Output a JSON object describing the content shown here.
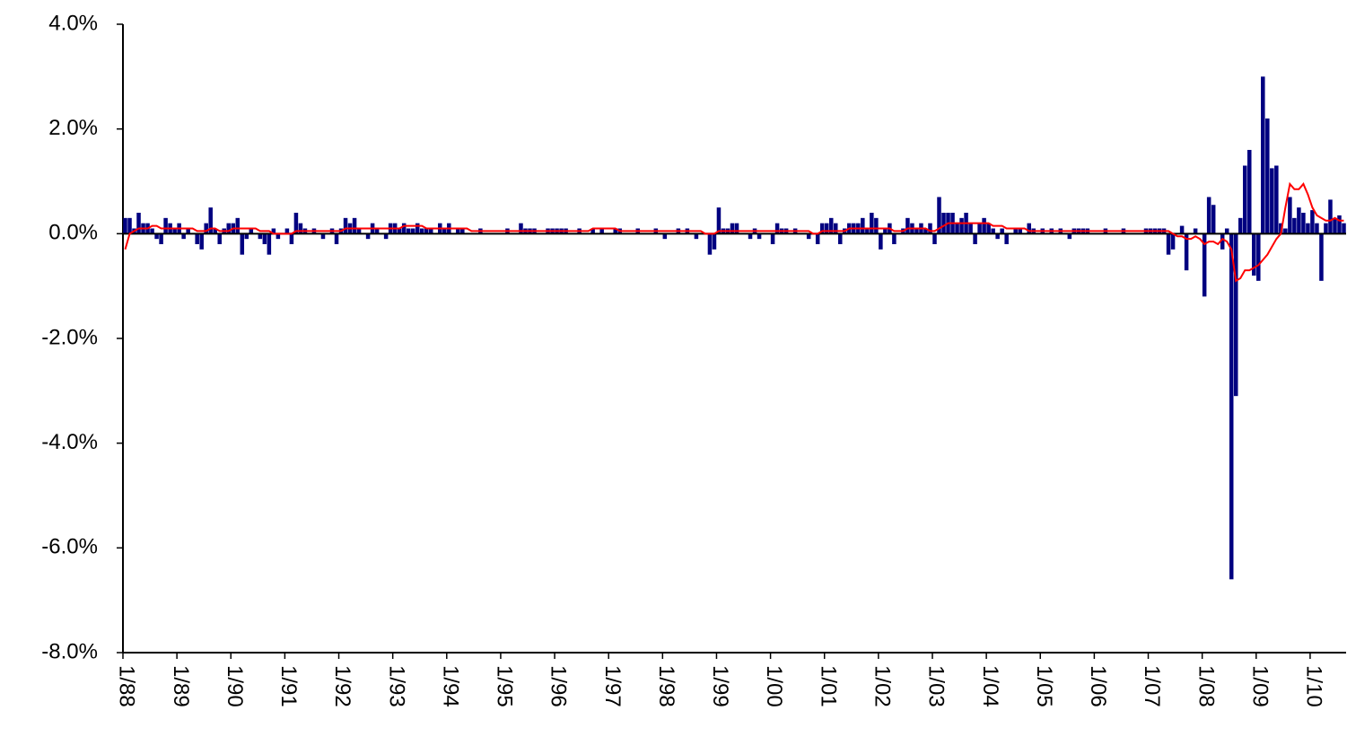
{
  "chart_data": {
    "type": "bar",
    "categories": [
      "1/88",
      null,
      null,
      null,
      null,
      null,
      null,
      null,
      null,
      null,
      null,
      null,
      "1/89",
      null,
      null,
      null,
      null,
      null,
      null,
      null,
      null,
      null,
      null,
      null,
      "1/90",
      null,
      null,
      null,
      null,
      null,
      null,
      null,
      null,
      null,
      null,
      null,
      "1/91",
      null,
      null,
      null,
      null,
      null,
      null,
      null,
      null,
      null,
      null,
      null,
      "1/92",
      null,
      null,
      null,
      null,
      null,
      null,
      null,
      null,
      null,
      null,
      null,
      "1/93",
      null,
      null,
      null,
      null,
      null,
      null,
      null,
      null,
      null,
      null,
      null,
      "1/94",
      null,
      null,
      null,
      null,
      null,
      null,
      null,
      null,
      null,
      null,
      null,
      "1/95",
      null,
      null,
      null,
      null,
      null,
      null,
      null,
      null,
      null,
      null,
      null,
      "1/96",
      null,
      null,
      null,
      null,
      null,
      null,
      null,
      null,
      null,
      null,
      null,
      "1/97",
      null,
      null,
      null,
      null,
      null,
      null,
      null,
      null,
      null,
      null,
      null,
      "1/98",
      null,
      null,
      null,
      null,
      null,
      null,
      null,
      null,
      null,
      null,
      null,
      "1/99",
      null,
      null,
      null,
      null,
      null,
      null,
      null,
      null,
      null,
      null,
      null,
      "1/00",
      null,
      null,
      null,
      null,
      null,
      null,
      null,
      null,
      null,
      null,
      null,
      "1/01",
      null,
      null,
      null,
      null,
      null,
      null,
      null,
      null,
      null,
      null,
      null,
      "1/02",
      null,
      null,
      null,
      null,
      null,
      null,
      null,
      null,
      null,
      null,
      null,
      "1/03",
      null,
      null,
      null,
      null,
      null,
      null,
      null,
      null,
      null,
      null,
      null,
      "1/04",
      null,
      null,
      null,
      null,
      null,
      null,
      null,
      null,
      null,
      null,
      null,
      "1/05",
      null,
      null,
      null,
      null,
      null,
      null,
      null,
      null,
      null,
      null,
      null,
      "1/06",
      null,
      null,
      null,
      null,
      null,
      null,
      null,
      null,
      null,
      null,
      null,
      "1/07",
      null,
      null,
      null,
      null,
      null,
      null,
      null,
      null,
      null,
      null,
      null,
      "1/08",
      null,
      null,
      null,
      null,
      null,
      null,
      null,
      null,
      null,
      null,
      null,
      "1/09",
      null,
      null,
      null,
      null,
      null,
      null,
      null,
      null,
      null,
      null,
      null,
      "1/10",
      null,
      null,
      null,
      null,
      null,
      null,
      null
    ],
    "series": [
      {
        "type": "bar",
        "color": "#000080",
        "values": [
          0.3,
          0.3,
          0.1,
          0.4,
          0.2,
          0.2,
          0.1,
          -0.1,
          -0.2,
          0.3,
          0.2,
          0.1,
          0.2,
          -0.1,
          0.1,
          0.0,
          -0.2,
          -0.3,
          0.2,
          0.5,
          0.1,
          -0.2,
          0.1,
          0.2,
          0.2,
          0.3,
          -0.4,
          -0.1,
          0.1,
          0.0,
          -0.1,
          -0.2,
          -0.4,
          0.1,
          -0.1,
          0.0,
          0.1,
          -0.2,
          0.4,
          0.2,
          0.1,
          0.0,
          0.1,
          0.0,
          -0.1,
          0.0,
          0.1,
          -0.2,
          0.1,
          0.3,
          0.2,
          0.3,
          0.1,
          0.0,
          -0.1,
          0.2,
          0.1,
          0.0,
          -0.1,
          0.2,
          0.2,
          0.1,
          0.2,
          0.1,
          0.1,
          0.2,
          0.1,
          0.1,
          0.1,
          0.0,
          0.2,
          0.1,
          0.2,
          0.0,
          0.1,
          0.1,
          0.0,
          0.0,
          0.0,
          0.1,
          0.0,
          0.0,
          0.0,
          0.0,
          0.0,
          0.1,
          0.0,
          0.0,
          0.2,
          0.1,
          0.1,
          0.1,
          0.0,
          0.0,
          0.1,
          0.1,
          0.1,
          0.1,
          0.1,
          0.0,
          0.0,
          0.1,
          0.0,
          0.0,
          0.1,
          0.0,
          0.1,
          0.0,
          0.0,
          0.1,
          0.1,
          0.0,
          0.0,
          0.0,
          0.1,
          0.0,
          0.0,
          0.0,
          0.1,
          0.0,
          -0.1,
          0.0,
          0.0,
          0.1,
          0.0,
          0.1,
          0.0,
          -0.1,
          0.0,
          0.0,
          -0.4,
          -0.3,
          0.5,
          0.1,
          0.1,
          0.2,
          0.2,
          0.0,
          0.0,
          -0.1,
          0.1,
          -0.1,
          0.0,
          0.0,
          -0.2,
          0.2,
          0.1,
          0.1,
          0.0,
          0.1,
          0.0,
          0.0,
          -0.1,
          0.0,
          -0.2,
          0.2,
          0.2,
          0.3,
          0.2,
          -0.2,
          0.1,
          0.2,
          0.2,
          0.2,
          0.3,
          0.1,
          0.4,
          0.3,
          -0.3,
          0.1,
          0.2,
          -0.2,
          0.0,
          0.1,
          0.3,
          0.2,
          0.1,
          0.2,
          0.1,
          0.2,
          -0.2,
          0.7,
          0.4,
          0.4,
          0.4,
          0.2,
          0.3,
          0.4,
          0.2,
          -0.2,
          0.2,
          0.3,
          0.2,
          0.1,
          -0.1,
          0.1,
          -0.2,
          0.0,
          0.1,
          0.1,
          0.0,
          0.2,
          0.1,
          0.0,
          0.1,
          0.0,
          0.1,
          0.0,
          0.1,
          0.0,
          -0.1,
          0.1,
          0.1,
          0.1,
          0.1,
          0.0,
          0.0,
          0.0,
          0.1,
          0.0,
          0.0,
          0.0,
          0.1,
          0.0,
          0.0,
          0.0,
          0.0,
          0.1,
          0.1,
          0.1,
          0.1,
          0.1,
          -0.4,
          -0.3,
          0.0,
          0.15,
          -0.7,
          0.0,
          0.1,
          0.0,
          -1.2,
          0.7,
          0.55,
          0.0,
          -0.3,
          0.1,
          -6.6,
          -3.1,
          0.3,
          1.3,
          1.6,
          -0.8,
          -0.9,
          3.0,
          2.2,
          1.25,
          1.3,
          0.2,
          0.1,
          0.7,
          0.3,
          0.5,
          0.4,
          0.2,
          0.45,
          0.2,
          -0.9,
          0.2,
          0.65,
          0.3,
          0.35,
          0.2
        ]
      },
      {
        "type": "line",
        "color": "#ff0000",
        "values": [
          -0.3,
          0.0,
          0.05,
          0.1,
          0.1,
          0.1,
          0.15,
          0.15,
          0.1,
          0.1,
          0.1,
          0.1,
          0.1,
          0.1,
          0.1,
          0.1,
          0.05,
          0.05,
          0.05,
          0.1,
          0.1,
          0.05,
          0.05,
          0.05,
          0.1,
          0.1,
          0.1,
          0.1,
          0.1,
          0.1,
          0.05,
          0.05,
          0.05,
          0.0,
          0.0,
          0.0,
          0.0,
          0.0,
          0.05,
          0.05,
          0.05,
          0.05,
          0.05,
          0.05,
          0.05,
          0.05,
          0.05,
          0.05,
          0.05,
          0.1,
          0.1,
          0.1,
          0.1,
          0.1,
          0.1,
          0.1,
          0.1,
          0.1,
          0.1,
          0.1,
          0.1,
          0.1,
          0.15,
          0.15,
          0.15,
          0.15,
          0.15,
          0.1,
          0.1,
          0.1,
          0.1,
          0.1,
          0.1,
          0.1,
          0.1,
          0.1,
          0.1,
          0.05,
          0.05,
          0.05,
          0.05,
          0.05,
          0.05,
          0.05,
          0.05,
          0.05,
          0.05,
          0.05,
          0.05,
          0.05,
          0.05,
          0.05,
          0.05,
          0.05,
          0.05,
          0.05,
          0.05,
          0.05,
          0.05,
          0.05,
          0.05,
          0.05,
          0.05,
          0.05,
          0.1,
          0.1,
          0.1,
          0.1,
          0.1,
          0.1,
          0.05,
          0.05,
          0.05,
          0.05,
          0.05,
          0.05,
          0.05,
          0.05,
          0.05,
          0.05,
          0.05,
          0.05,
          0.05,
          0.05,
          0.05,
          0.05,
          0.05,
          0.05,
          0.05,
          0.0,
          0.0,
          0.0,
          0.05,
          0.05,
          0.05,
          0.05,
          0.05,
          0.05,
          0.05,
          0.05,
          0.05,
          0.05,
          0.05,
          0.05,
          0.05,
          0.05,
          0.05,
          0.05,
          0.05,
          0.05,
          0.05,
          0.05,
          0.05,
          0.0,
          0.0,
          0.05,
          0.05,
          0.05,
          0.05,
          0.05,
          0.05,
          0.1,
          0.1,
          0.1,
          0.1,
          0.1,
          0.1,
          0.1,
          0.1,
          0.1,
          0.1,
          0.05,
          0.05,
          0.05,
          0.1,
          0.1,
          0.1,
          0.1,
          0.1,
          0.05,
          0.05,
          0.1,
          0.15,
          0.2,
          0.2,
          0.2,
          0.2,
          0.2,
          0.2,
          0.2,
          0.2,
          0.2,
          0.2,
          0.15,
          0.15,
          0.15,
          0.1,
          0.1,
          0.1,
          0.1,
          0.1,
          0.05,
          0.05,
          0.05,
          0.05,
          0.05,
          0.05,
          0.05,
          0.05,
          0.05,
          0.05,
          0.05,
          0.05,
          0.05,
          0.05,
          0.05,
          0.05,
          0.05,
          0.05,
          0.05,
          0.05,
          0.05,
          0.05,
          0.05,
          0.05,
          0.05,
          0.05,
          0.05,
          0.05,
          0.05,
          0.05,
          0.05,
          0.05,
          0.0,
          -0.05,
          -0.05,
          -0.1,
          -0.1,
          -0.05,
          -0.1,
          -0.2,
          -0.15,
          -0.15,
          -0.2,
          -0.1,
          -0.15,
          -0.3,
          -0.9,
          -0.85,
          -0.7,
          -0.7,
          -0.65,
          -0.6,
          -0.5,
          -0.4,
          -0.25,
          -0.1,
          0.0,
          0.5,
          0.95,
          0.85,
          0.85,
          0.95,
          0.75,
          0.5,
          0.35,
          0.3,
          0.25,
          0.25,
          0.3,
          0.25,
          0.25
        ]
      }
    ],
    "ylim": [
      -8,
      4
    ],
    "yticks": [
      {
        "value": 4,
        "label": "4.0%"
      },
      {
        "value": 2,
        "label": "2.0%"
      },
      {
        "value": 0,
        "label": "0.0%"
      },
      {
        "value": -2,
        "label": "-2.0%"
      },
      {
        "value": -4,
        "label": "-4.0%"
      },
      {
        "value": -6,
        "label": "-6.0%"
      },
      {
        "value": -8,
        "label": "-8.0%"
      }
    ]
  }
}
